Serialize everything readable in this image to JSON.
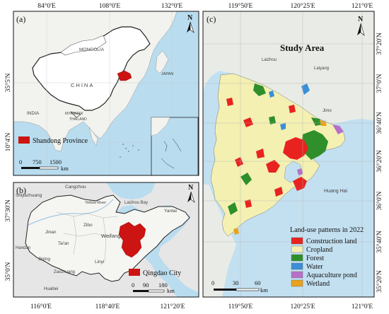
{
  "panel_a": {
    "letter": "(a)",
    "top_ticks": [
      "84°0'E",
      "108°0'E",
      "132°0'E"
    ],
    "left_ticks": [
      "35°5'N",
      "10°4'N"
    ],
    "countries": [
      "MONGOLIA",
      "CHINA",
      "INDIA",
      "JAPAN",
      "MYANMAR",
      "THAILAND"
    ],
    "legend_label": "Shandong Province",
    "scale_ticks": [
      "0",
      "750",
      "1500"
    ],
    "scale_unit": "km",
    "north": "N"
  },
  "panel_b": {
    "letter": "(b)",
    "left_ticks": [
      "37°30'N",
      "35°0'N"
    ],
    "bottom_ticks": [
      "116°0'E",
      "118°40'E",
      "121°20'E"
    ],
    "places": [
      "Cangzhou",
      "Shijiazhuang",
      "Laizhou Bay",
      "Yellow River",
      "Yantai",
      "Zibo",
      "Weifang",
      "Jinan",
      "Tai'an",
      "Handan",
      "Jining",
      "Linyi",
      "Zaozhuang",
      "Huaibei"
    ],
    "legend_label": "Qingdao City",
    "scale_ticks": [
      "0",
      "90",
      "180"
    ],
    "scale_unit": "km",
    "north": "N"
  },
  "panel_c": {
    "letter": "(c)",
    "title": "Study Area",
    "top_ticks": [
      "119°50'E",
      "120°25'E",
      "121°0'E"
    ],
    "bottom_ticks": [
      "119°50'E",
      "120°25'E",
      "121°0'E"
    ],
    "right_ticks": [
      "37°20'N",
      "37°0'N",
      "36°40'N",
      "36°20'N",
      "36°0'N",
      "35°40'N",
      "35°20'N"
    ],
    "places": [
      "Laizhou",
      "Laiyang",
      "Jimo",
      "Huang Hai"
    ],
    "legend_title": "Land-use patterns in 2022",
    "legend": [
      {
        "label": "Construction land",
        "color": "#e8231f"
      },
      {
        "label": "Cropland",
        "color": "#f3f0b2"
      },
      {
        "label": "Forest",
        "color": "#2f8f2a"
      },
      {
        "label": "Water",
        "color": "#3c8fd6"
      },
      {
        "label": "Aquaculture pond",
        "color": "#b670c8"
      },
      {
        "label": "Wetland",
        "color": "#e8a21c"
      }
    ],
    "scale_ticks": [
      "0",
      "30",
      "60"
    ],
    "scale_unit": "km",
    "north": "N"
  },
  "colors": {
    "sea": "#aed6ee",
    "land": "#f4f4f1",
    "highlight": "#cc1412",
    "shaded_land": "#e6e6e6"
  }
}
